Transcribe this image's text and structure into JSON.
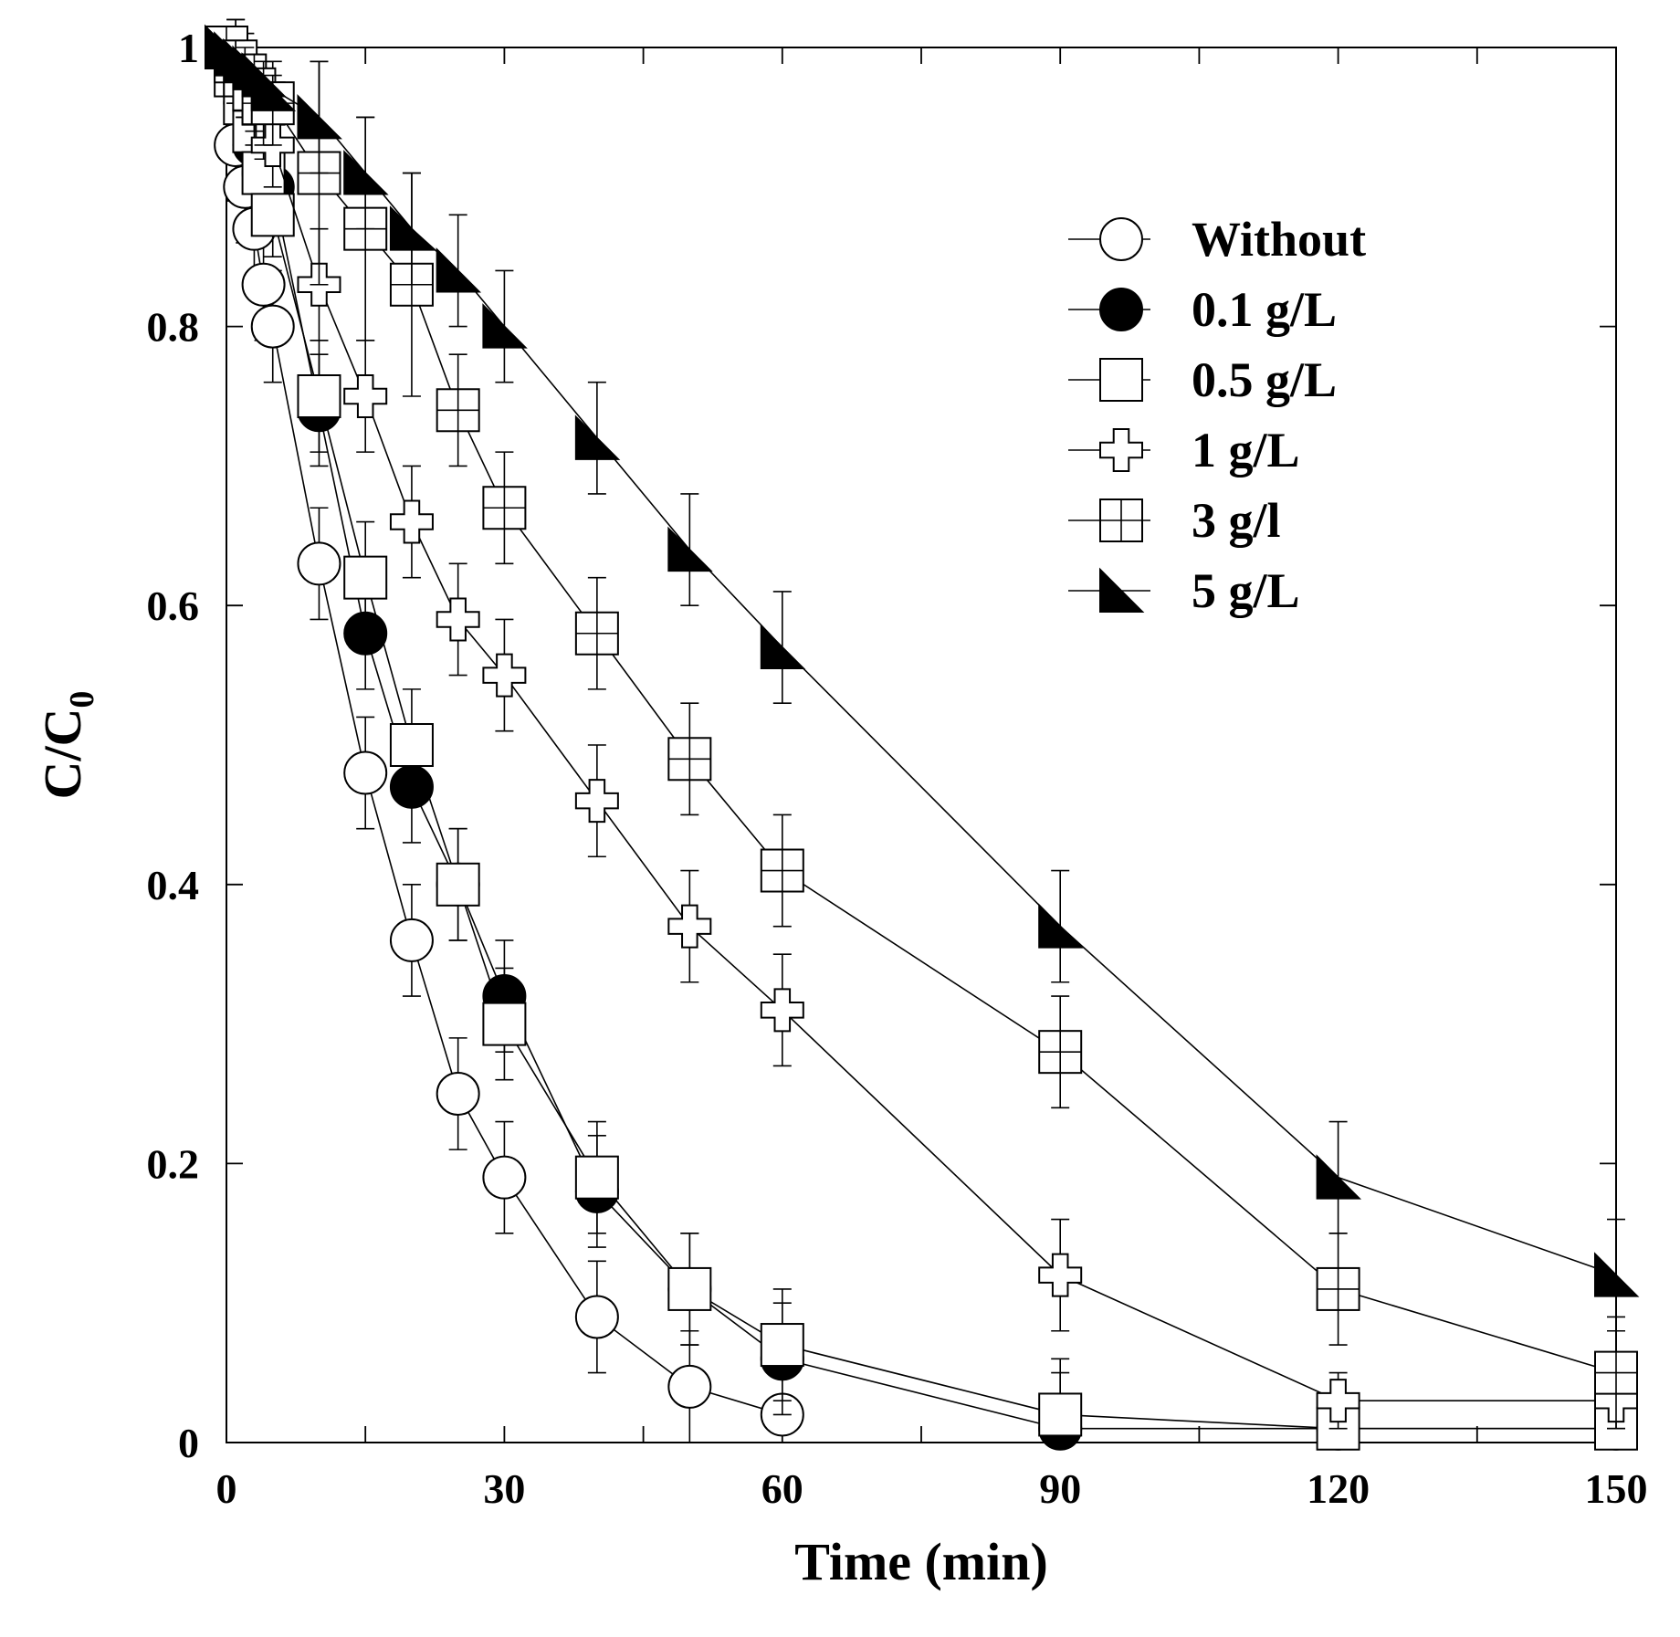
{
  "chart_data": {
    "type": "line",
    "xlabel": "Time (min)",
    "ylabel_main": "C/C",
    "ylabel_sub": "0",
    "xlim": [
      0,
      150
    ],
    "ylim": [
      0,
      1
    ],
    "x_ticks": [
      0,
      30,
      60,
      90,
      120,
      150
    ],
    "x_tick_labels": [
      "0",
      "30",
      "60",
      "90",
      "120",
      "150"
    ],
    "x_minor_ticks": [
      15,
      45,
      75,
      105,
      135
    ],
    "y_ticks": [
      0,
      0.2,
      0.4,
      0.6,
      0.8,
      1
    ],
    "y_tick_labels": [
      "0",
      "0.2",
      "0.4",
      "0.6",
      "0.8",
      "1"
    ],
    "legend_position": "top-right",
    "series": [
      {
        "name": "Without",
        "marker": "open-circle",
        "x": [
          0,
          1,
          2,
          3,
          4,
          5,
          10,
          15,
          20,
          25,
          30,
          40,
          50,
          60
        ],
        "y": [
          1.0,
          0.93,
          0.9,
          0.87,
          0.83,
          0.8,
          0.63,
          0.48,
          0.36,
          0.25,
          0.19,
          0.09,
          0.04,
          0.02
        ],
        "err": [
          0,
          0.04,
          0.04,
          0.04,
          0.04,
          0.04,
          0.04,
          0.04,
          0.04,
          0.04,
          0.04,
          0.04,
          0.04,
          0.0
        ]
      },
      {
        "name": "0.1 g/L",
        "marker": "filled-circle",
        "x": [
          0,
          1,
          2,
          3,
          4,
          5,
          10,
          15,
          20,
          25,
          30,
          40,
          50,
          60,
          90,
          120,
          150
        ],
        "y": [
          1.0,
          0.98,
          0.96,
          0.93,
          0.91,
          0.9,
          0.74,
          0.58,
          0.47,
          0.4,
          0.32,
          0.18,
          0.11,
          0.06,
          0.01,
          0.01,
          0.01
        ],
        "err": [
          0,
          0.03,
          0.03,
          0.03,
          0.03,
          0.03,
          0.04,
          0.04,
          0.04,
          0.04,
          0.04,
          0.04,
          0.04,
          0.04,
          0.04,
          0.0,
          0.0
        ]
      },
      {
        "name": "0.5 g/L",
        "marker": "open-square",
        "x": [
          0,
          1,
          2,
          3,
          4,
          5,
          10,
          15,
          20,
          25,
          30,
          40,
          50,
          60,
          90,
          120,
          150
        ],
        "y": [
          1.0,
          0.98,
          0.96,
          0.94,
          0.91,
          0.88,
          0.75,
          0.62,
          0.5,
          0.4,
          0.3,
          0.19,
          0.11,
          0.07,
          0.02,
          0.01,
          0.01
        ],
        "err": [
          0,
          0.03,
          0.03,
          0.03,
          0.03,
          0.03,
          0.04,
          0.04,
          0.04,
          0.04,
          0.04,
          0.04,
          0.04,
          0.04,
          0.04,
          0.0,
          0.0
        ]
      },
      {
        "name": "1 g/L",
        "marker": "open-cross",
        "x": [
          0,
          1,
          2,
          3,
          4,
          5,
          10,
          15,
          20,
          25,
          30,
          40,
          50,
          60,
          90,
          120,
          150
        ],
        "y": [
          1.0,
          0.99,
          0.98,
          0.96,
          0.95,
          0.93,
          0.83,
          0.75,
          0.66,
          0.59,
          0.55,
          0.46,
          0.37,
          0.31,
          0.12,
          0.03,
          0.03
        ],
        "err": [
          0,
          0.03,
          0.03,
          0.03,
          0.03,
          0.03,
          0.04,
          0.04,
          0.04,
          0.04,
          0.04,
          0.04,
          0.04,
          0.04,
          0.04,
          0.02,
          0.02
        ]
      },
      {
        "name": "3 g/l",
        "marker": "crossed-square",
        "x": [
          0,
          1,
          2,
          3,
          4,
          5,
          10,
          15,
          20,
          25,
          30,
          40,
          50,
          60,
          90,
          120,
          150
        ],
        "y": [
          1.0,
          0.99,
          0.98,
          0.97,
          0.96,
          0.96,
          0.91,
          0.87,
          0.83,
          0.74,
          0.67,
          0.58,
          0.49,
          0.41,
          0.28,
          0.11,
          0.05
        ],
        "err": [
          0,
          0.03,
          0.03,
          0.03,
          0.03,
          0.03,
          0.08,
          0.08,
          0.08,
          0.04,
          0.04,
          0.04,
          0.04,
          0.04,
          0.04,
          0.04,
          0.04
        ]
      },
      {
        "name": "5 g/L",
        "marker": "filled-triangle",
        "x": [
          0,
          1,
          2,
          3,
          4,
          5,
          10,
          15,
          20,
          25,
          30,
          40,
          50,
          60,
          90,
          120,
          150
        ],
        "y": [
          1.0,
          0.995,
          0.99,
          0.985,
          0.98,
          0.97,
          0.95,
          0.91,
          0.87,
          0.84,
          0.8,
          0.72,
          0.64,
          0.57,
          0.37,
          0.19,
          0.12
        ],
        "err": [
          0,
          0.01,
          0.01,
          0.01,
          0.01,
          0.01,
          0.04,
          0.04,
          0.04,
          0.04,
          0.04,
          0.04,
          0.04,
          0.04,
          0.04,
          0.04,
          0.04
        ]
      }
    ]
  }
}
